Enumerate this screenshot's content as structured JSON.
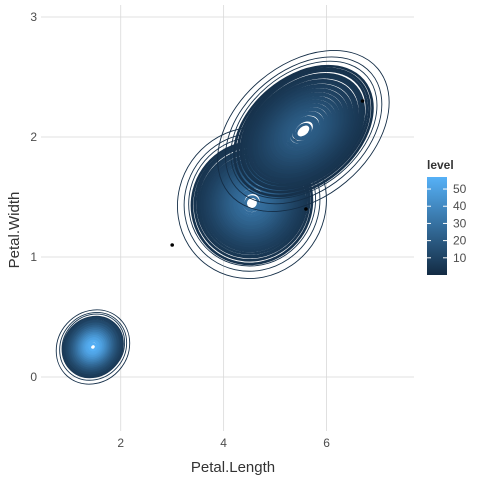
{
  "chart_data": {
    "type": "density-contour",
    "xlabel": "Petal.Length",
    "ylabel": "Petal.Width",
    "xlim": [
      0.45,
      7.7
    ],
    "ylim": [
      -0.45,
      3.1
    ],
    "x_ticks": [
      2,
      4,
      6
    ],
    "y_ticks": [
      0,
      1,
      2,
      3
    ],
    "grid": true,
    "legend": {
      "title": "level",
      "position": "right",
      "min": 0,
      "max": 57,
      "ticks": [
        10,
        20,
        30,
        40,
        50
      ],
      "color_low": "#132b43",
      "color_high": "#56b1f7"
    },
    "clusters": [
      {
        "center": [
          1.46,
          0.25
        ],
        "spread": [
          0.38,
          0.2
        ],
        "angle_deg": 48,
        "peak_level": 57
      },
      {
        "center": [
          4.55,
          1.45
        ],
        "spread": [
          0.75,
          0.42
        ],
        "angle_deg": 55,
        "peak_level": 30
      },
      {
        "center": [
          5.55,
          2.05
        ],
        "spread": [
          0.95,
          0.38
        ],
        "angle_deg": 40,
        "peak_level": 22
      }
    ],
    "points": [
      {
        "x": 3.0,
        "y": 1.1
      },
      {
        "x": 5.6,
        "y": 1.4
      },
      {
        "x": 6.7,
        "y": 2.3
      }
    ]
  }
}
